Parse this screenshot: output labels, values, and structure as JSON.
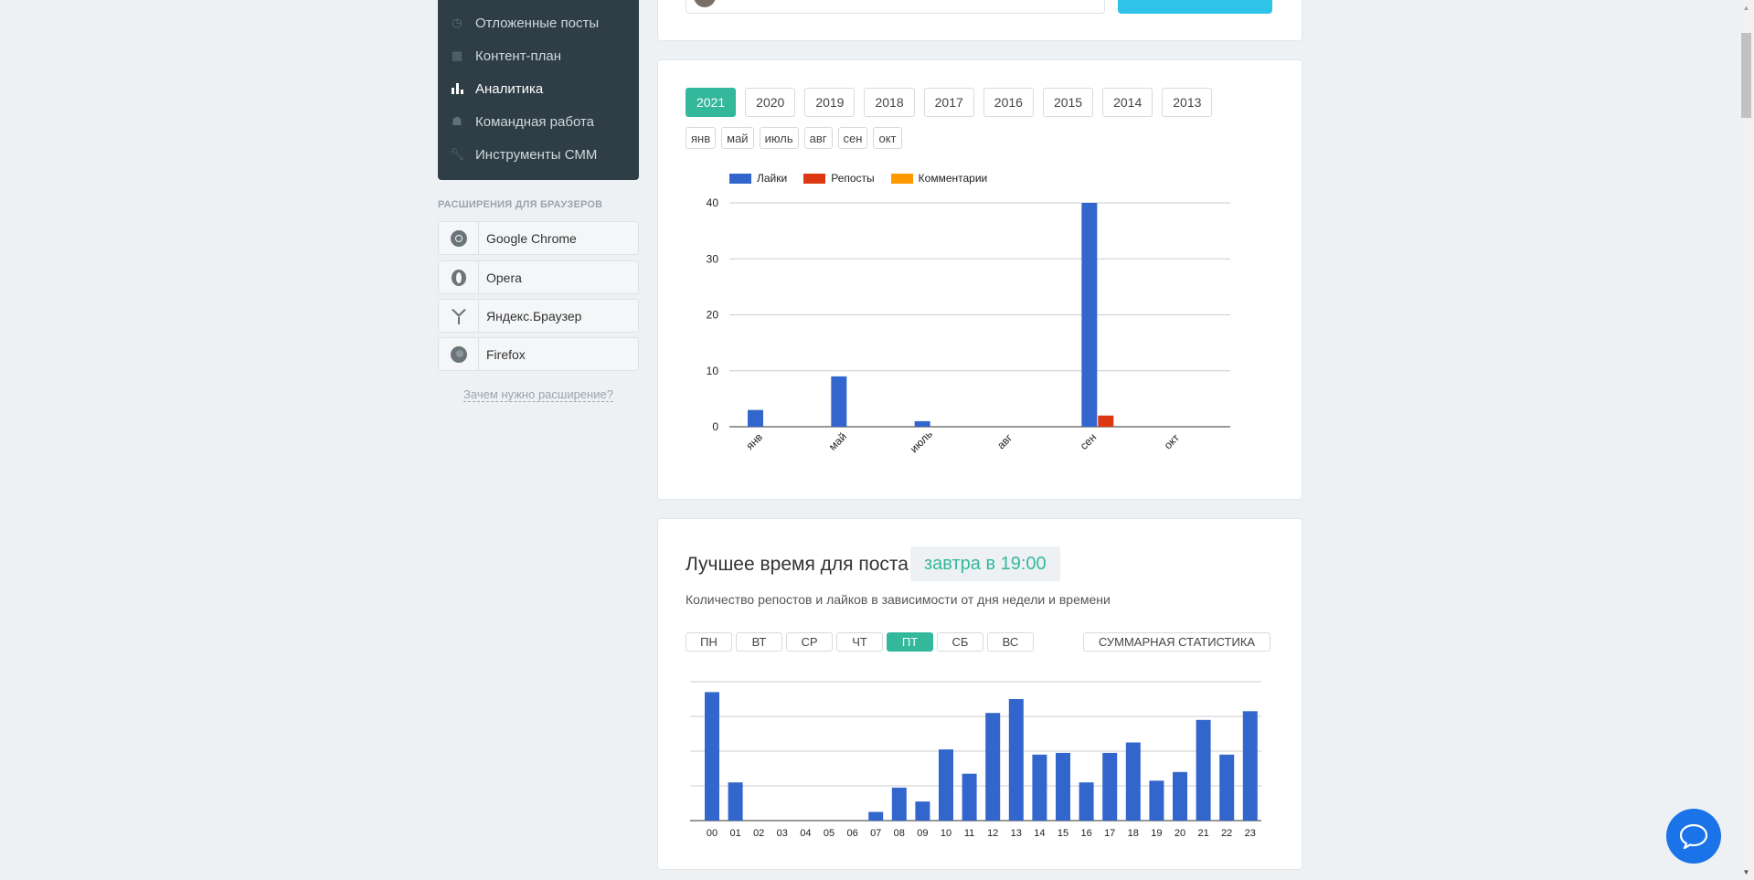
{
  "sidebar": {
    "items": [
      {
        "label": "Отложенные посты",
        "icon": "clock-icon"
      },
      {
        "label": "Контент-план",
        "icon": "calendar-icon"
      },
      {
        "label": "Аналитика",
        "icon": "bar-chart-icon",
        "active": true
      },
      {
        "label": "Командная работа",
        "icon": "team-icon"
      },
      {
        "label": "Инструменты СММ",
        "icon": "wrench-icon"
      }
    ],
    "extensions_title": "РАСШИРЕНИЯ ДЛЯ БРАУЗЕРОВ",
    "extensions": [
      {
        "label": "Google Chrome",
        "icon": "chrome-icon"
      },
      {
        "label": "Opera",
        "icon": "opera-icon"
      },
      {
        "label": "Яндекс.Браузер",
        "icon": "yandex-browser-icon"
      },
      {
        "label": "Firefox",
        "icon": "firefox-icon"
      }
    ],
    "why_link": "Зачем нужно расширение?"
  },
  "analytics": {
    "years": [
      "2021",
      "2020",
      "2019",
      "2018",
      "2017",
      "2016",
      "2015",
      "2014",
      "2013"
    ],
    "active_year": "2021",
    "months": [
      "янв",
      "май",
      "июль",
      "авг",
      "сен",
      "окт"
    ]
  },
  "best_time": {
    "title": "Лучшее время для поста",
    "time": "завтра в 19:00",
    "subtitle": "Количество репостов и лайков в зависимости от дня недели и времени",
    "days": [
      "ПН",
      "ВТ",
      "СР",
      "ЧТ",
      "ПТ",
      "СБ",
      "ВС"
    ],
    "active_day": "ПТ",
    "summary_button": "СУММАРНАЯ СТАТИСТИКА"
  },
  "colors": {
    "accent": "#33b89b",
    "sidebar_bg": "#2e3d46",
    "likes": "#3366cc",
    "reposts": "#dc3912",
    "comments": "#ff9900",
    "chat": "#1a73e8"
  },
  "chart_data": [
    {
      "type": "bar",
      "categories": [
        "янв",
        "май",
        "июль",
        "авг",
        "сен",
        "окт"
      ],
      "series": [
        {
          "name": "Лайки",
          "values": [
            3,
            9,
            1,
            0,
            40,
            0
          ]
        },
        {
          "name": "Репосты",
          "values": [
            0,
            0,
            0,
            0,
            2,
            0
          ]
        },
        {
          "name": "Комментарии",
          "values": [
            0,
            0,
            0,
            0,
            0,
            0
          ]
        }
      ],
      "yticks": [
        0,
        10,
        20,
        30,
        40
      ],
      "ylim": [
        0,
        40
      ],
      "legend": "top-left",
      "grid": true
    },
    {
      "type": "bar",
      "categories": [
        "00",
        "01",
        "02",
        "03",
        "04",
        "05",
        "06",
        "07",
        "08",
        "09",
        "10",
        "11",
        "12",
        "13",
        "14",
        "15",
        "16",
        "17",
        "18",
        "19",
        "20",
        "21",
        "22",
        "23"
      ],
      "series": [
        {
          "values": [
            3.7,
            1.1,
            0,
            0,
            0,
            0,
            0,
            0.25,
            0.95,
            0.55,
            2.05,
            1.35,
            3.1,
            3.5,
            1.9,
            1.95,
            1.1,
            1.95,
            2.25,
            1.15,
            1.4,
            2.9,
            1.9,
            3.15
          ]
        }
      ],
      "ylim": [
        0,
        4
      ],
      "grid": true
    }
  ]
}
